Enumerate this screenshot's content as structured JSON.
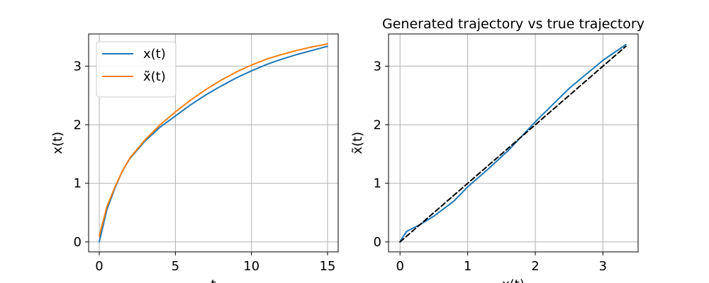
{
  "chart_data": [
    {
      "type": "line",
      "title": "",
      "xlabel": "t",
      "ylabel": "x(t)",
      "xlim": [
        -0.7,
        15.7
      ],
      "ylim": [
        -0.17,
        3.55
      ],
      "xticks": [
        0,
        5,
        10,
        15
      ],
      "yticks": [
        0,
        1,
        2,
        3
      ],
      "grid": true,
      "legend_position": "upper-left",
      "series": [
        {
          "name": "x(t)",
          "color": "#1f77b4",
          "x": [
            0,
            0.5,
            1,
            1.5,
            2,
            3,
            4,
            5,
            6,
            7,
            8,
            9,
            10,
            11,
            12,
            13,
            14,
            15
          ],
          "y": [
            0,
            0.55,
            0.9,
            1.2,
            1.42,
            1.72,
            1.96,
            2.15,
            2.34,
            2.51,
            2.66,
            2.8,
            2.92,
            3.03,
            3.12,
            3.2,
            3.27,
            3.34
          ]
        },
        {
          "name": "x̃(t)",
          "color": "#ff7f0e",
          "x": [
            0,
            0.5,
            1,
            1.5,
            2,
            3,
            4,
            5,
            6,
            7,
            8,
            9,
            10,
            11,
            12,
            13,
            14,
            15
          ],
          "y": [
            0.1,
            0.6,
            0.92,
            1.2,
            1.43,
            1.74,
            2.0,
            2.22,
            2.42,
            2.6,
            2.76,
            2.9,
            3.02,
            3.12,
            3.2,
            3.27,
            3.33,
            3.38
          ]
        }
      ]
    },
    {
      "type": "line",
      "title": "Generated trajectory vs true trajectory",
      "xlabel": "x(t)",
      "ylabel": "x̃(t)",
      "xlim": [
        -0.17,
        3.52
      ],
      "ylim": [
        -0.17,
        3.55
      ],
      "xticks": [
        0,
        1,
        2,
        3
      ],
      "yticks": [
        0,
        1,
        2,
        3
      ],
      "grid": true,
      "series": [
        {
          "name": "",
          "color": "#1f77b4",
          "style": "solid",
          "x": [
            0,
            0.05,
            0.1,
            0.2,
            0.3,
            0.5,
            0.8,
            1.0,
            1.3,
            1.6,
            2.0,
            2.5,
            3.0,
            3.34
          ],
          "y": [
            0,
            0.1,
            0.18,
            0.24,
            0.3,
            0.44,
            0.7,
            0.94,
            1.24,
            1.56,
            2.05,
            2.62,
            3.1,
            3.37
          ]
        },
        {
          "name": "",
          "color": "#000000",
          "style": "dashed",
          "x": [
            0,
            3.34
          ],
          "y": [
            0,
            3.34
          ]
        }
      ]
    }
  ]
}
